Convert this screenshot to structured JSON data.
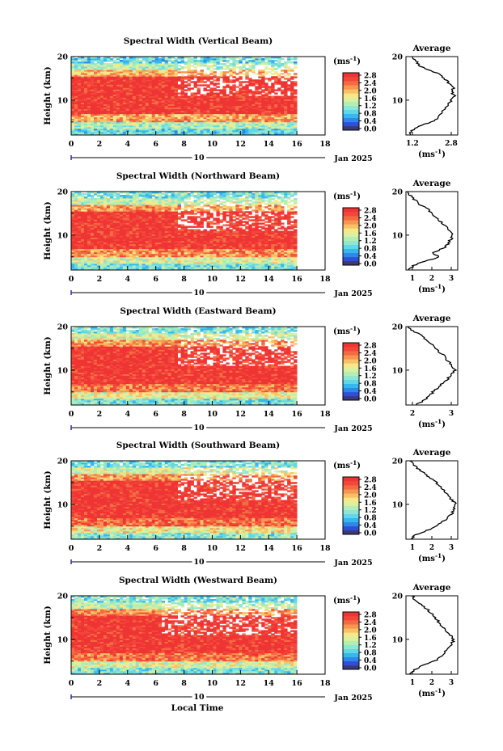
{
  "figure": {
    "date_label": "Jan 2025",
    "xlabel": "Local Time",
    "day_label": "10",
    "colorbar_unit": "(ms",
    "colorbar_unit_exp": "-1",
    "colorbar_unit_close": ")",
    "avg_title": "Average",
    "avg_xlabel": "(ms",
    "ylabel": "Height (km)"
  },
  "colormap": [
    "#3a3a78",
    "#2f4fd8",
    "#2f87e6",
    "#35b8ee",
    "#62d7e8",
    "#8fe7d2",
    "#b5eeb2",
    "#ddf0a0",
    "#f6e88a",
    "#f9c166",
    "#f79651",
    "#f46b42",
    "#f2473a",
    "#ef3434"
  ],
  "chart_data": [
    {
      "type": "heatmap",
      "title": "Spectral Width (Vertical Beam)",
      "xlim": [
        0,
        18
      ],
      "xticks": [
        0,
        2,
        4,
        6,
        8,
        10,
        12,
        14,
        16,
        18
      ],
      "data_end_hour": 16,
      "ylim": [
        2,
        20
      ],
      "yticks": [
        10,
        20
      ],
      "colorbar_ticks": [
        "0.0",
        "0.4",
        "0.8",
        "1.2",
        "1.6",
        "2.0",
        "2.4",
        "2.8"
      ],
      "bands": [
        [
          2,
          3.5,
          0.9
        ],
        [
          3.5,
          5,
          1.3
        ],
        [
          5,
          7,
          2.1
        ],
        [
          7,
          15.5,
          2.8
        ],
        [
          15.5,
          17,
          2.0
        ],
        [
          17,
          18.5,
          1.3
        ],
        [
          18.5,
          20,
          0.9
        ]
      ],
      "gap_start_hour": 7.5,
      "profile": {
        "xlim": [
          1.2,
          2.8
        ],
        "xticks": [
          "1.2",
          "2.8"
        ],
        "heights": [
          2,
          3,
          4,
          5,
          6,
          7,
          8,
          9,
          10,
          11,
          12,
          13,
          14,
          15,
          16,
          17,
          18,
          19,
          20
        ],
        "values": [
          1.3,
          1.4,
          1.6,
          2.0,
          2.2,
          2.3,
          2.4,
          2.5,
          2.6,
          2.7,
          2.6,
          2.7,
          2.5,
          2.4,
          2.2,
          1.9,
          1.6,
          1.5,
          1.4
        ]
      }
    },
    {
      "type": "heatmap",
      "title": "Spectral Width (Northward Beam)",
      "xlim": [
        0,
        18
      ],
      "xticks": [
        0,
        2,
        4,
        6,
        8,
        10,
        12,
        14,
        16,
        18
      ],
      "data_end_hour": 16,
      "ylim": [
        2,
        20
      ],
      "yticks": [
        10,
        20
      ],
      "colorbar_ticks": [
        "0.0",
        "0.4",
        "0.8",
        "1.2",
        "1.6",
        "2.0",
        "2.4",
        "2.8"
      ],
      "bands": [
        [
          2,
          3.5,
          1.0
        ],
        [
          3.5,
          5,
          1.5
        ],
        [
          5,
          7,
          2.2
        ],
        [
          7,
          15.5,
          2.8
        ],
        [
          15.5,
          17,
          2.1
        ],
        [
          17,
          18.5,
          1.4
        ],
        [
          18.5,
          20,
          1.0
        ]
      ],
      "gap_start_hour": 7.5,
      "profile": {
        "xlim": [
          1.2,
          3.4
        ],
        "xticks": [
          "1",
          "2",
          "3"
        ],
        "heights": [
          2,
          3,
          4,
          5,
          6,
          7,
          8,
          9,
          10,
          11,
          12,
          13,
          14,
          15,
          16,
          17,
          18,
          19,
          20
        ],
        "values": [
          1.3,
          1.5,
          2.0,
          2.6,
          2.3,
          2.8,
          3.0,
          3.1,
          3.2,
          3.1,
          2.9,
          2.7,
          2.5,
          2.3,
          2.1,
          1.8,
          1.6,
          1.4,
          1.3
        ]
      }
    },
    {
      "type": "heatmap",
      "title": "Spectral Width (Eastward Beam)",
      "xlim": [
        0,
        18
      ],
      "xticks": [
        0,
        2,
        4,
        6,
        8,
        10,
        12,
        14,
        16,
        18
      ],
      "data_end_hour": 16,
      "ylim": [
        2,
        20
      ],
      "yticks": [
        10,
        20
      ],
      "colorbar_ticks": [
        "0.0",
        "0.4",
        "0.8",
        "1.2",
        "1.6",
        "2.0",
        "2.4",
        "2.8"
      ],
      "bands": [
        [
          2,
          3.5,
          1.0
        ],
        [
          3.5,
          5,
          1.6
        ],
        [
          5,
          7,
          2.3
        ],
        [
          7,
          15.5,
          2.8
        ],
        [
          15.5,
          17,
          2.2
        ],
        [
          17,
          18.5,
          1.5
        ],
        [
          18.5,
          20,
          1.0
        ]
      ],
      "gap_start_hour": 7.5,
      "profile": {
        "xlim": [
          1.2,
          3.3
        ],
        "xticks": [
          "2",
          "3"
        ],
        "heights": [
          2,
          3,
          4,
          5,
          6,
          7,
          8,
          9,
          10,
          11,
          12,
          13,
          14,
          15,
          16,
          17,
          18,
          19,
          20
        ],
        "values": [
          1.6,
          1.9,
          2.1,
          2.3,
          2.5,
          2.7,
          2.9,
          3.0,
          3.2,
          3.1,
          2.9,
          2.8,
          2.6,
          2.4,
          2.2,
          2.0,
          1.8,
          1.5,
          1.3
        ]
      }
    },
    {
      "type": "heatmap",
      "title": "Spectral Width (Southward Beam)",
      "xlim": [
        0,
        18
      ],
      "xticks": [
        0,
        2,
        4,
        6,
        8,
        10,
        12,
        14,
        16,
        18
      ],
      "data_end_hour": 16,
      "ylim": [
        2,
        20
      ],
      "yticks": [
        10,
        20
      ],
      "colorbar_ticks": [
        "0.0",
        "0.4",
        "0.8",
        "1.2",
        "1.6",
        "2.0",
        "2.4",
        "2.8"
      ],
      "bands": [
        [
          2,
          3.5,
          1.1
        ],
        [
          3.5,
          5,
          1.7
        ],
        [
          5,
          7,
          2.4
        ],
        [
          7,
          15.5,
          2.8
        ],
        [
          15.5,
          17,
          2.2
        ],
        [
          17,
          18.5,
          1.5
        ],
        [
          18.5,
          20,
          1.0
        ]
      ],
      "gap_start_hour": 7.5,
      "profile": {
        "xlim": [
          0.9,
          3.6
        ],
        "xticks": [
          "1",
          "2",
          "3"
        ],
        "heights": [
          2,
          3,
          4,
          5,
          6,
          7,
          8,
          9,
          10,
          11,
          12,
          13,
          14,
          15,
          16,
          17,
          18,
          19,
          20
        ],
        "values": [
          1.1,
          1.4,
          2.0,
          2.5,
          2.8,
          3.1,
          3.3,
          3.4,
          3.5,
          3.3,
          3.1,
          2.9,
          2.7,
          2.5,
          2.2,
          1.9,
          1.6,
          1.3,
          1.1
        ]
      }
    },
    {
      "type": "heatmap",
      "title": "Spectral Width (Westward Beam)",
      "xlim": [
        0,
        18
      ],
      "xticks": [
        0,
        2,
        4,
        6,
        8,
        10,
        12,
        14,
        16,
        18
      ],
      "data_end_hour": 16,
      "ylim": [
        2,
        20
      ],
      "yticks": [
        10,
        20
      ],
      "colorbar_ticks": [
        "0.0",
        "0.4",
        "0.8",
        "1.2",
        "1.6",
        "2.0",
        "2.4",
        "2.8"
      ],
      "bands": [
        [
          2,
          3.5,
          1.0
        ],
        [
          3.5,
          5,
          1.5
        ],
        [
          5,
          7,
          2.3
        ],
        [
          7,
          15.5,
          2.8
        ],
        [
          15.5,
          17,
          2.2
        ],
        [
          17,
          18.5,
          1.4
        ],
        [
          18.5,
          20,
          1.0
        ]
      ],
      "gap_start_hour": 6.5,
      "profile": {
        "xlim": [
          0.9,
          3.6
        ],
        "xticks": [
          "1",
          "2",
          "3"
        ],
        "heights": [
          2,
          3,
          4,
          5,
          6,
          7,
          8,
          9,
          10,
          11,
          12,
          13,
          14,
          15,
          16,
          17,
          18,
          19,
          20
        ],
        "values": [
          1.1,
          1.3,
          1.8,
          2.4,
          2.7,
          2.9,
          3.1,
          3.3,
          3.4,
          3.2,
          3.0,
          2.8,
          2.6,
          2.4,
          2.2,
          2.0,
          1.7,
          1.4,
          1.2
        ]
      }
    }
  ]
}
